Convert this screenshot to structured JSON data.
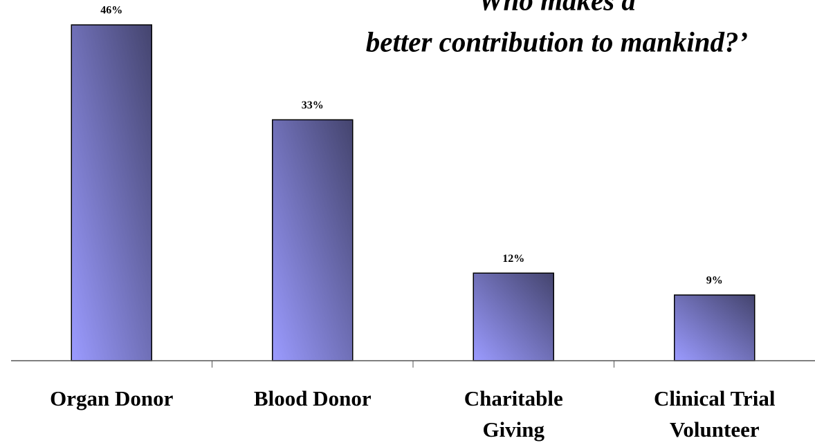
{
  "chart_data": {
    "type": "bar",
    "title": [
      "Who makes a",
      "better contribution to mankind?’"
    ],
    "categories": [
      [
        "Organ Donor"
      ],
      [
        "Blood Donor"
      ],
      [
        "Charitable",
        "Giving"
      ],
      [
        "Clinical Trial",
        "Volunteer"
      ]
    ],
    "values": [
      46,
      33,
      12,
      9
    ],
    "value_labels": [
      "46%",
      "33%",
      "12%",
      "9%"
    ]
  }
}
